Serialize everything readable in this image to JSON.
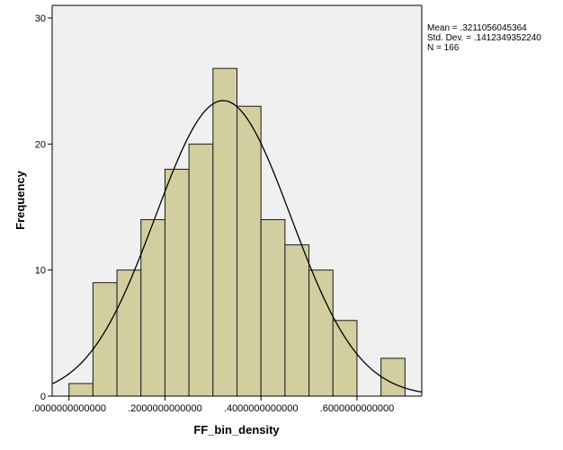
{
  "chart_data": {
    "type": "bar",
    "subtype": "histogram",
    "xlabel": "FF_bin_density",
    "ylabel": "Frequency",
    "xlim": [
      -0.035,
      0.735
    ],
    "ylim": [
      0,
      31
    ],
    "x_ticks": [
      0.0,
      0.2,
      0.4,
      0.6
    ],
    "x_tick_labels": [
      ".0000000000000",
      ".2000000000000",
      ".4000000000000",
      ".6000000000000"
    ],
    "y_ticks": [
      0,
      10,
      20,
      30
    ],
    "y_tick_labels": [
      "0",
      "10",
      "20",
      "30"
    ],
    "bin_width": 0.05,
    "bins": [
      {
        "x0": 0.0,
        "x1": 0.05,
        "count": 1
      },
      {
        "x0": 0.05,
        "x1": 0.1,
        "count": 9
      },
      {
        "x0": 0.1,
        "x1": 0.15,
        "count": 10
      },
      {
        "x0": 0.15,
        "x1": 0.2,
        "count": 14
      },
      {
        "x0": 0.2,
        "x1": 0.25,
        "count": 18
      },
      {
        "x0": 0.25,
        "x1": 0.3,
        "count": 20
      },
      {
        "x0": 0.3,
        "x1": 0.35,
        "count": 26
      },
      {
        "x0": 0.35,
        "x1": 0.4,
        "count": 23
      },
      {
        "x0": 0.4,
        "x1": 0.45,
        "count": 14
      },
      {
        "x0": 0.45,
        "x1": 0.5,
        "count": 12
      },
      {
        "x0": 0.5,
        "x1": 0.55,
        "count": 10
      },
      {
        "x0": 0.55,
        "x1": 0.6,
        "count": 6
      },
      {
        "x0": 0.65,
        "x1": 0.7,
        "count": 3
      }
    ],
    "normal_curve": {
      "mean": 0.3211056045364,
      "std": 0.141234935224,
      "n": 166
    },
    "stats_lines": [
      "Mean = .3211056045364",
      "Std. Dev. = .1412349352240",
      "N = 166"
    ],
    "colors": {
      "plot_background": "#f0f0f0",
      "bar_fill": "#d3cea0",
      "bar_stroke": "#1a1a1a",
      "curve": "#000000"
    },
    "grid": false,
    "legend": "none"
  }
}
